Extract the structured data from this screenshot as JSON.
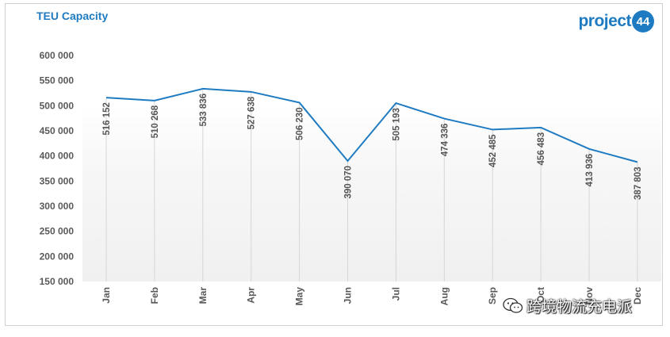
{
  "header": {
    "title": "TEU Capacity"
  },
  "logo": {
    "text": "project",
    "number": "44"
  },
  "watermark": {
    "text": "跨境物流充电派",
    "icon": "wechat-icon"
  },
  "colors": {
    "line": "#1f7bc1",
    "title": "#1f7bc1",
    "dropline": "#d6d6d6",
    "plot_bg_bottom": "#f0f0f0"
  },
  "chart_data": {
    "type": "line",
    "title": "TEU Capacity",
    "xlabel": "",
    "ylabel": "",
    "categories": [
      "Jan",
      "Feb",
      "Mar",
      "Apr",
      "May",
      "Jun",
      "Jul",
      "Aug",
      "Sep",
      "Oct",
      "Nov",
      "Dec"
    ],
    "values": [
      516152,
      510268,
      533836,
      527638,
      506230,
      390070,
      505193,
      474336,
      452485,
      456483,
      413936,
      387803
    ],
    "data_labels": [
      "516 152",
      "510 268",
      "533 836",
      "527 638",
      "506 230",
      "390 070",
      "505 193",
      "474 336",
      "452 485",
      "456 483",
      "413 936",
      "387 803"
    ],
    "y_ticks": [
      150000,
      200000,
      250000,
      300000,
      350000,
      400000,
      450000,
      500000,
      550000,
      600000
    ],
    "y_tick_labels": [
      "150 000",
      "200 000",
      "250 000",
      "300 000",
      "350 000",
      "400 000",
      "450 000",
      "500 000",
      "550 000",
      "600 000"
    ],
    "ylim": [
      150000,
      600000
    ],
    "grid": false,
    "legend": "none"
  }
}
